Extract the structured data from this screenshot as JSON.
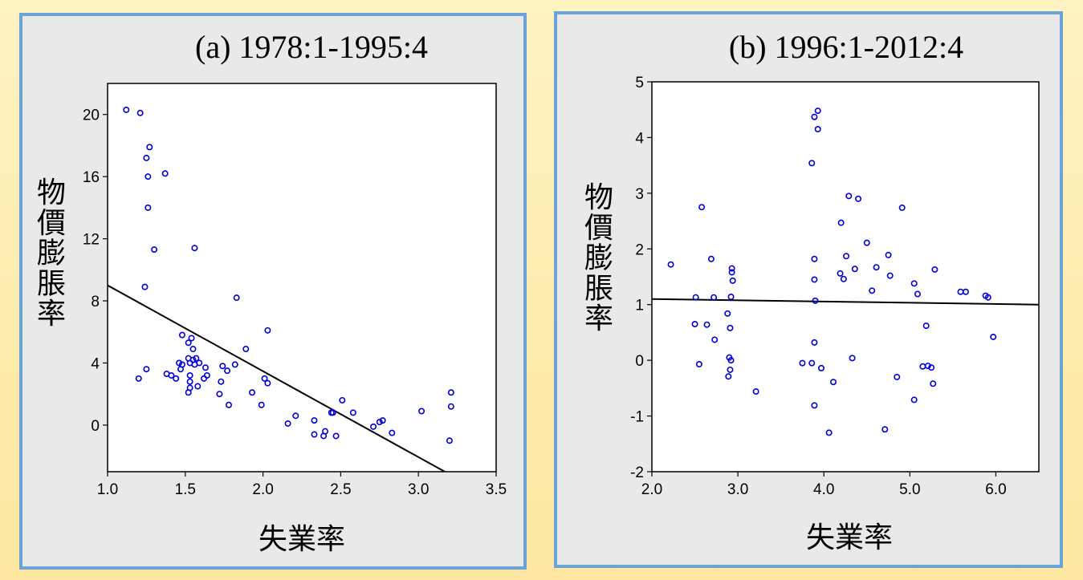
{
  "chart_data": [
    {
      "type": "scatter",
      "title": "(a) 1978:1-1995:4",
      "xlabel": "失業率",
      "ylabel": "物價膨脹率",
      "xlim": [
        1.0,
        3.5
      ],
      "ylim": [
        -3,
        22
      ],
      "xticks": [
        "1.0",
        "1.5",
        "2.0",
        "2.5",
        "3.0",
        "3.5"
      ],
      "xtick_values": [
        1.0,
        1.5,
        2.0,
        2.5,
        3.0,
        3.5
      ],
      "yticks": [
        "0",
        "4",
        "8",
        "12",
        "16",
        "20"
      ],
      "ytick_values": [
        0,
        4,
        8,
        12,
        16,
        20
      ],
      "grid": false,
      "colors": {
        "points": "#0000dd",
        "line": "#000000"
      },
      "points": [
        [
          1.12,
          20.3
        ],
        [
          1.21,
          20.1
        ],
        [
          1.27,
          17.9
        ],
        [
          1.25,
          17.2
        ],
        [
          1.26,
          16.0
        ],
        [
          1.37,
          16.2
        ],
        [
          1.26,
          14.0
        ],
        [
          1.3,
          11.3
        ],
        [
          1.56,
          11.4
        ],
        [
          1.24,
          8.9
        ],
        [
          1.83,
          8.2
        ],
        [
          2.03,
          6.1
        ],
        [
          1.48,
          5.8
        ],
        [
          1.54,
          5.6
        ],
        [
          1.52,
          5.3
        ],
        [
          1.55,
          4.9
        ],
        [
          1.89,
          4.9
        ],
        [
          1.52,
          4.3
        ],
        [
          1.55,
          4.2
        ],
        [
          1.57,
          4.3
        ],
        [
          1.46,
          4.0
        ],
        [
          1.53,
          4.0
        ],
        [
          1.48,
          3.9
        ],
        [
          1.56,
          3.9
        ],
        [
          1.59,
          4.0
        ],
        [
          1.63,
          3.7
        ],
        [
          1.74,
          3.8
        ],
        [
          1.82,
          3.9
        ],
        [
          1.47,
          3.6
        ],
        [
          1.25,
          3.6
        ],
        [
          1.38,
          3.3
        ],
        [
          1.41,
          3.2
        ],
        [
          1.44,
          3.0
        ],
        [
          1.2,
          3.0
        ],
        [
          1.53,
          3.2
        ],
        [
          1.64,
          3.2
        ],
        [
          1.62,
          3.0
        ],
        [
          1.77,
          3.5
        ],
        [
          1.53,
          2.8
        ],
        [
          1.73,
          2.8
        ],
        [
          1.58,
          2.5
        ],
        [
          1.53,
          2.4
        ],
        [
          1.52,
          2.1
        ],
        [
          1.72,
          2.0
        ],
        [
          1.93,
          2.1
        ],
        [
          2.01,
          3.0
        ],
        [
          2.03,
          2.7
        ],
        [
          1.78,
          1.3
        ],
        [
          1.99,
          1.3
        ],
        [
          2.21,
          0.6
        ],
        [
          2.16,
          0.1
        ],
        [
          2.33,
          0.3
        ],
        [
          2.51,
          1.6
        ],
        [
          2.44,
          0.8
        ],
        [
          2.45,
          0.8
        ],
        [
          2.58,
          0.8
        ],
        [
          2.33,
          -0.6
        ],
        [
          2.39,
          -0.7
        ],
        [
          2.4,
          -0.4
        ],
        [
          2.47,
          -0.7
        ],
        [
          2.71,
          -0.1
        ],
        [
          2.75,
          0.2
        ],
        [
          2.77,
          0.3
        ],
        [
          2.83,
          -0.5
        ],
        [
          3.02,
          0.9
        ],
        [
          3.21,
          2.1
        ],
        [
          3.21,
          1.2
        ],
        [
          3.2,
          -1.0
        ]
      ],
      "fit_line": [
        [
          1.0,
          9.0
        ],
        [
          3.17,
          -3.0
        ]
      ]
    },
    {
      "type": "scatter",
      "title": "(b) 1996:1-2012:4",
      "xlabel": "失業率",
      "ylabel": "物價膨脹率",
      "xlim": [
        2.0,
        6.5
      ],
      "ylim": [
        -2,
        5
      ],
      "xticks": [
        "2.0",
        "3.0",
        "4.0",
        "5.0",
        "6.0"
      ],
      "xtick_values": [
        2.0,
        3.0,
        4.0,
        5.0,
        6.0
      ],
      "yticks": [
        "-2",
        "-1",
        "0",
        "1",
        "2",
        "3",
        "4",
        "5"
      ],
      "ytick_values": [
        -2,
        -1,
        0,
        1,
        2,
        3,
        4,
        5
      ],
      "grid": false,
      "colors": {
        "points": "#0000dd",
        "line": "#000000"
      },
      "points": [
        [
          2.22,
          1.72
        ],
        [
          2.58,
          2.75
        ],
        [
          2.69,
          1.82
        ],
        [
          2.51,
          1.13
        ],
        [
          2.72,
          1.13
        ],
        [
          2.5,
          0.65
        ],
        [
          2.64,
          0.64
        ],
        [
          2.73,
          0.37
        ],
        [
          2.55,
          -0.07
        ],
        [
          2.93,
          1.65
        ],
        [
          2.93,
          1.58
        ],
        [
          2.94,
          1.43
        ],
        [
          2.92,
          1.14
        ],
        [
          2.88,
          0.84
        ],
        [
          2.91,
          0.58
        ],
        [
          2.9,
          0.05
        ],
        [
          2.92,
          0.0
        ],
        [
          2.91,
          -0.17
        ],
        [
          2.89,
          -0.29
        ],
        [
          3.21,
          -0.56
        ],
        [
          3.93,
          4.48
        ],
        [
          3.89,
          4.37
        ],
        [
          3.93,
          4.15
        ],
        [
          3.86,
          3.54
        ],
        [
          3.89,
          1.82
        ],
        [
          3.89,
          1.45
        ],
        [
          3.9,
          1.07
        ],
        [
          3.89,
          0.32
        ],
        [
          3.86,
          -0.05
        ],
        [
          3.75,
          -0.05
        ],
        [
          3.97,
          -0.14
        ],
        [
          3.89,
          -0.81
        ],
        [
          4.06,
          -1.3
        ],
        [
          4.11,
          -0.39
        ],
        [
          4.33,
          0.04
        ],
        [
          4.29,
          2.95
        ],
        [
          4.4,
          2.9
        ],
        [
          4.2,
          2.47
        ],
        [
          4.5,
          2.11
        ],
        [
          4.26,
          1.87
        ],
        [
          4.36,
          1.64
        ],
        [
          4.19,
          1.56
        ],
        [
          4.23,
          1.46
        ],
        [
          4.61,
          1.67
        ],
        [
          4.75,
          1.89
        ],
        [
          4.77,
          1.52
        ],
        [
          4.56,
          1.25
        ],
        [
          4.91,
          2.74
        ],
        [
          5.05,
          1.38
        ],
        [
          5.09,
          1.19
        ],
        [
          5.29,
          1.63
        ],
        [
          4.85,
          -0.3
        ],
        [
          5.05,
          -0.71
        ],
        [
          5.15,
          -0.11
        ],
        [
          5.21,
          -0.1
        ],
        [
          5.25,
          -0.13
        ],
        [
          5.27,
          -0.42
        ],
        [
          4.71,
          -1.24
        ],
        [
          5.19,
          0.62
        ],
        [
          5.59,
          1.23
        ],
        [
          5.65,
          1.23
        ],
        [
          5.88,
          1.16
        ],
        [
          5.91,
          1.13
        ],
        [
          5.97,
          0.42
        ]
      ],
      "fit_line": [
        [
          2.0,
          1.1
        ],
        [
          6.5,
          1.0
        ]
      ]
    }
  ]
}
